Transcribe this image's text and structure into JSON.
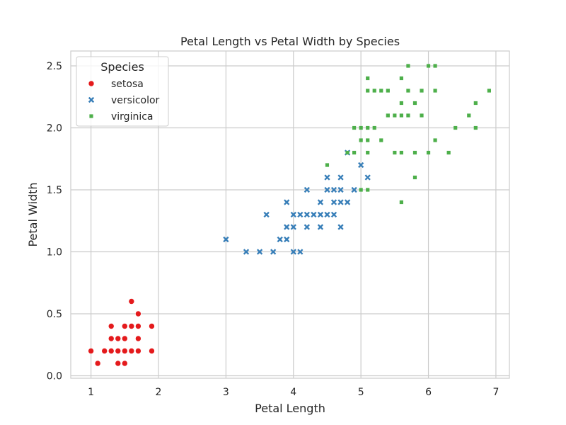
{
  "chart_data": {
    "type": "scatter",
    "title": "Petal Length vs Petal Width by Species",
    "xlabel": "Petal Length",
    "ylabel": "Petal Width",
    "xlim": [
      0.7,
      7.2
    ],
    "ylim": [
      -0.02,
      2.62
    ],
    "xticks": [
      1,
      2,
      3,
      4,
      5,
      6,
      7
    ],
    "yticks": [
      0.0,
      0.5,
      1.0,
      1.5,
      2.0,
      2.5
    ],
    "grid": true,
    "legend": {
      "title": "Species",
      "position": "top-left"
    },
    "series": [
      {
        "name": "setosa",
        "color": "#e41a1c",
        "marker": "circle",
        "points": [
          [
            1.0,
            0.2
          ],
          [
            1.1,
            0.1
          ],
          [
            1.2,
            0.2
          ],
          [
            1.3,
            0.2
          ],
          [
            1.3,
            0.3
          ],
          [
            1.3,
            0.4
          ],
          [
            1.4,
            0.1
          ],
          [
            1.4,
            0.2
          ],
          [
            1.4,
            0.3
          ],
          [
            1.5,
            0.1
          ],
          [
            1.5,
            0.2
          ],
          [
            1.5,
            0.3
          ],
          [
            1.5,
            0.4
          ],
          [
            1.6,
            0.2
          ],
          [
            1.6,
            0.4
          ],
          [
            1.6,
            0.6
          ],
          [
            1.7,
            0.2
          ],
          [
            1.7,
            0.3
          ],
          [
            1.7,
            0.4
          ],
          [
            1.7,
            0.5
          ],
          [
            1.9,
            0.2
          ],
          [
            1.9,
            0.4
          ]
        ]
      },
      {
        "name": "versicolor",
        "color": "#377eb8",
        "marker": "x",
        "points": [
          [
            3.0,
            1.1
          ],
          [
            3.3,
            1.0
          ],
          [
            3.5,
            1.0
          ],
          [
            3.6,
            1.3
          ],
          [
            3.7,
            1.0
          ],
          [
            3.8,
            1.1
          ],
          [
            3.9,
            1.1
          ],
          [
            3.9,
            1.2
          ],
          [
            3.9,
            1.4
          ],
          [
            4.0,
            1.0
          ],
          [
            4.0,
            1.2
          ],
          [
            4.0,
            1.3
          ],
          [
            4.1,
            1.0
          ],
          [
            4.1,
            1.3
          ],
          [
            4.2,
            1.2
          ],
          [
            4.2,
            1.3
          ],
          [
            4.2,
            1.5
          ],
          [
            4.3,
            1.3
          ],
          [
            4.4,
            1.2
          ],
          [
            4.4,
            1.3
          ],
          [
            4.4,
            1.4
          ],
          [
            4.5,
            1.3
          ],
          [
            4.5,
            1.5
          ],
          [
            4.5,
            1.6
          ],
          [
            4.6,
            1.3
          ],
          [
            4.6,
            1.4
          ],
          [
            4.6,
            1.5
          ],
          [
            4.7,
            1.2
          ],
          [
            4.7,
            1.4
          ],
          [
            4.7,
            1.5
          ],
          [
            4.7,
            1.6
          ],
          [
            4.8,
            1.4
          ],
          [
            4.8,
            1.8
          ],
          [
            4.9,
            1.5
          ],
          [
            5.0,
            1.7
          ],
          [
            5.1,
            1.6
          ]
        ]
      },
      {
        "name": "virginica",
        "color": "#4daf4a",
        "marker": "square",
        "points": [
          [
            4.5,
            1.7
          ],
          [
            4.8,
            1.8
          ],
          [
            4.9,
            1.8
          ],
          [
            4.9,
            2.0
          ],
          [
            5.0,
            1.5
          ],
          [
            5.0,
            1.9
          ],
          [
            5.0,
            2.0
          ],
          [
            5.1,
            1.5
          ],
          [
            5.1,
            1.8
          ],
          [
            5.1,
            1.9
          ],
          [
            5.1,
            2.0
          ],
          [
            5.1,
            2.3
          ],
          [
            5.1,
            2.4
          ],
          [
            5.2,
            2.0
          ],
          [
            5.2,
            2.3
          ],
          [
            5.3,
            1.9
          ],
          [
            5.3,
            2.3
          ],
          [
            5.4,
            2.1
          ],
          [
            5.4,
            2.3
          ],
          [
            5.5,
            1.8
          ],
          [
            5.5,
            2.1
          ],
          [
            5.6,
            1.4
          ],
          [
            5.6,
            1.8
          ],
          [
            5.6,
            2.1
          ],
          [
            5.6,
            2.2
          ],
          [
            5.6,
            2.4
          ],
          [
            5.7,
            2.1
          ],
          [
            5.7,
            2.3
          ],
          [
            5.7,
            2.5
          ],
          [
            5.8,
            1.6
          ],
          [
            5.8,
            1.8
          ],
          [
            5.8,
            2.2
          ],
          [
            5.9,
            2.1
          ],
          [
            5.9,
            2.3
          ],
          [
            6.0,
            1.8
          ],
          [
            6.0,
            2.5
          ],
          [
            6.1,
            1.9
          ],
          [
            6.1,
            2.3
          ],
          [
            6.1,
            2.5
          ],
          [
            6.3,
            1.8
          ],
          [
            6.4,
            2.0
          ],
          [
            6.6,
            2.1
          ],
          [
            6.7,
            2.0
          ],
          [
            6.7,
            2.2
          ],
          [
            6.9,
            2.3
          ]
        ]
      }
    ]
  }
}
